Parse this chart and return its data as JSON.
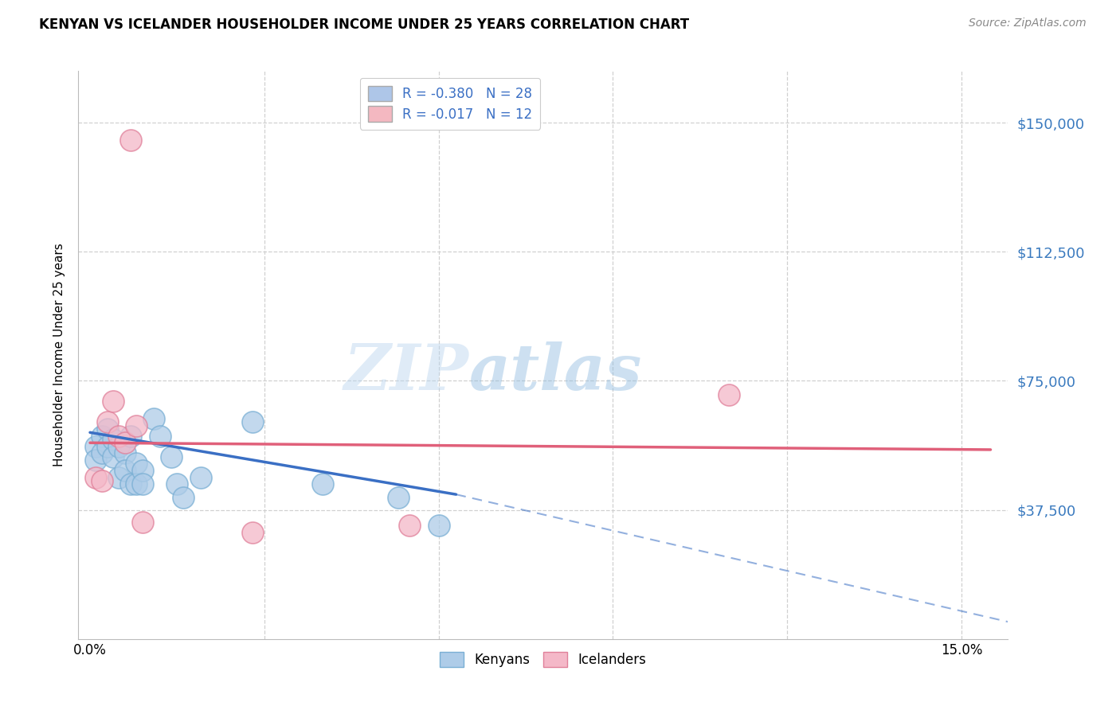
{
  "title": "KENYAN VS ICELANDER HOUSEHOLDER INCOME UNDER 25 YEARS CORRELATION CHART",
  "source": "Source: ZipAtlas.com",
  "ylabel": "Householder Income Under 25 years",
  "x_ticks": [
    0.0,
    0.03,
    0.06,
    0.09,
    0.12,
    0.15
  ],
  "x_tick_labels": [
    "0.0%",
    "",
    "",
    "",
    "",
    "15.0%"
  ],
  "y_ticks": [
    0,
    37500,
    75000,
    112500,
    150000
  ],
  "y_tick_labels": [
    "",
    "$37,500",
    "$75,000",
    "$112,500",
    "$150,000"
  ],
  "xlim": [
    -0.002,
    0.158
  ],
  "ylim": [
    0,
    165000
  ],
  "legend_entries": [
    {
      "label": "R = -0.380   N = 28",
      "color": "#aec6e8"
    },
    {
      "label": "R = -0.017   N = 12",
      "color": "#f4b8c1"
    }
  ],
  "watermark_zip": "ZIP",
  "watermark_atlas": "atlas",
  "background_color": "#ffffff",
  "grid_color": "#d0d0d0",
  "kenyan_color": "#aecce8",
  "kenyan_edge_color": "#7aafd4",
  "icelander_color": "#f4b8c8",
  "icelander_edge_color": "#e0809a",
  "kenyan_line_color": "#3a6fc4",
  "icelander_line_color": "#e0607a",
  "kenyan_dots": [
    [
      0.001,
      56000
    ],
    [
      0.001,
      52000
    ],
    [
      0.002,
      59000
    ],
    [
      0.002,
      54000
    ],
    [
      0.003,
      61000
    ],
    [
      0.003,
      56000
    ],
    [
      0.004,
      58000
    ],
    [
      0.004,
      53000
    ],
    [
      0.005,
      56000
    ],
    [
      0.005,
      47000
    ],
    [
      0.006,
      54000
    ],
    [
      0.006,
      49000
    ],
    [
      0.007,
      59000
    ],
    [
      0.007,
      45000
    ],
    [
      0.008,
      51000
    ],
    [
      0.008,
      45000
    ],
    [
      0.009,
      49000
    ],
    [
      0.009,
      45000
    ],
    [
      0.011,
      64000
    ],
    [
      0.012,
      59000
    ],
    [
      0.014,
      53000
    ],
    [
      0.015,
      45000
    ],
    [
      0.016,
      41000
    ],
    [
      0.019,
      47000
    ],
    [
      0.028,
      63000
    ],
    [
      0.04,
      45000
    ],
    [
      0.053,
      41000
    ],
    [
      0.06,
      33000
    ]
  ],
  "icelander_dots": [
    [
      0.001,
      47000
    ],
    [
      0.002,
      46000
    ],
    [
      0.003,
      63000
    ],
    [
      0.004,
      69000
    ],
    [
      0.005,
      59000
    ],
    [
      0.006,
      57000
    ],
    [
      0.007,
      145000
    ],
    [
      0.008,
      62000
    ],
    [
      0.009,
      34000
    ],
    [
      0.028,
      31000
    ],
    [
      0.055,
      33000
    ],
    [
      0.11,
      71000
    ]
  ],
  "kenyan_solid_line": {
    "x0": 0.0,
    "y0": 60000,
    "x1": 0.063,
    "y1": 42000
  },
  "kenyan_dash_line": {
    "x0": 0.063,
    "y0": 42000,
    "x1": 0.158,
    "y1": 5000
  },
  "icelander_line": {
    "x0": 0.0,
    "y0": 57000,
    "x1": 0.155,
    "y1": 55000
  }
}
